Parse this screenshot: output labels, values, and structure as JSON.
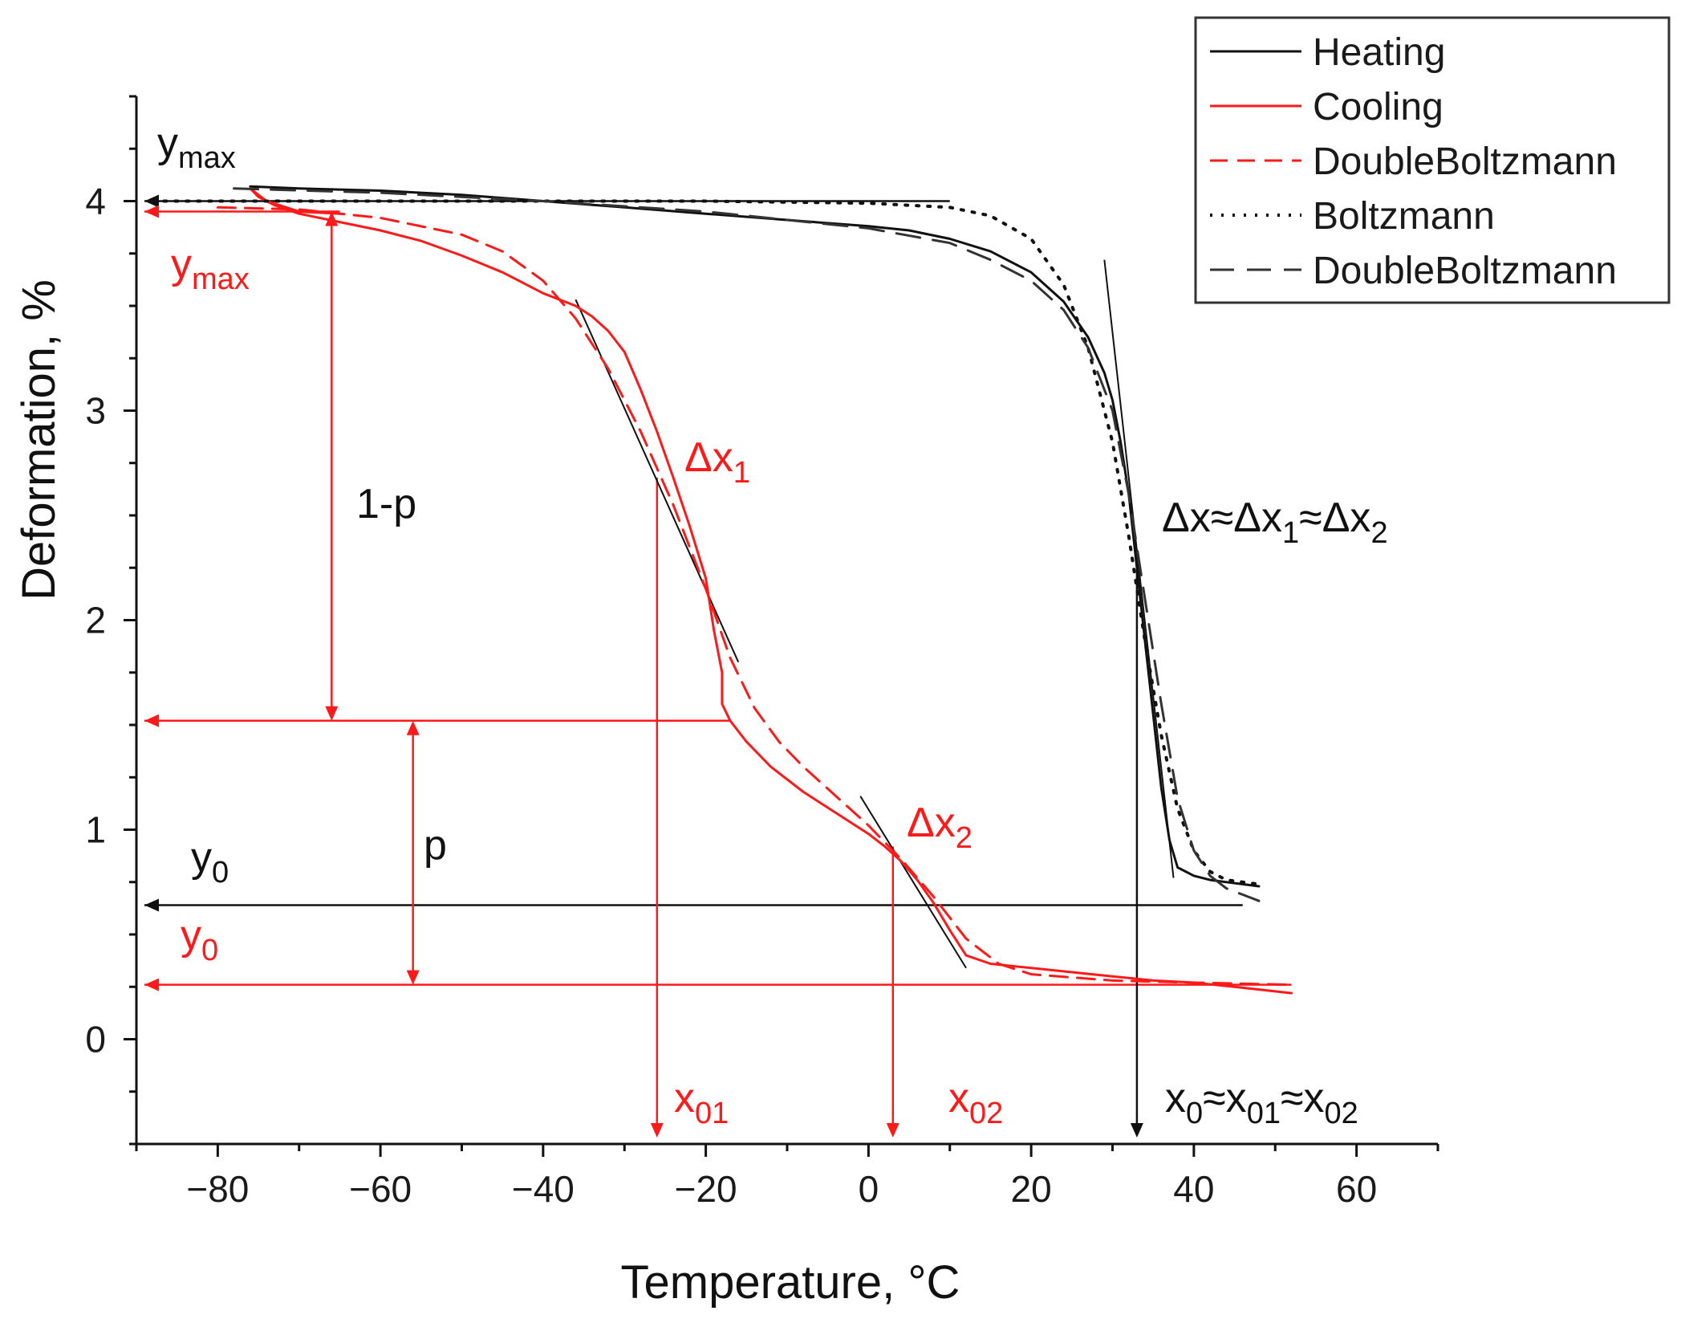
{
  "chart_data": {
    "type": "line",
    "xlabel": "Temperature, °C",
    "ylabel": "Deformation, %",
    "xlim": [
      -90,
      70
    ],
    "ylim": [
      -0.5,
      4.5
    ],
    "xticks": [
      -80,
      -60,
      -40,
      -20,
      0,
      20,
      40,
      60
    ],
    "xtick_labels": [
      "−80",
      "−60",
      "−40",
      "−20",
      "0",
      "20",
      "40",
      "60"
    ],
    "yticks": [
      0,
      1,
      2,
      3,
      4
    ],
    "ytick_labels": [
      "0",
      "1",
      "2",
      "3",
      "4"
    ],
    "legend_position": "top-right",
    "colors": {
      "black": "#111111",
      "red": "#ff1a1a"
    },
    "series": [
      {
        "name": "Heating",
        "color": "#111111",
        "style": "solid",
        "width": 3,
        "x": [
          -76,
          -70,
          -60,
          -50,
          -40,
          -30,
          -20,
          -10,
          0,
          5,
          10,
          15,
          20,
          24,
          27,
          29,
          30,
          31,
          32,
          33,
          34,
          35,
          36,
          37,
          38,
          40,
          42,
          44,
          46,
          48
        ],
        "y": [
          4.07,
          4.06,
          4.05,
          4.03,
          4.0,
          3.97,
          3.94,
          3.91,
          3.88,
          3.86,
          3.82,
          3.76,
          3.66,
          3.52,
          3.35,
          3.18,
          3.05,
          2.85,
          2.6,
          2.25,
          1.9,
          1.55,
          1.2,
          0.95,
          0.82,
          0.78,
          0.76,
          0.75,
          0.74,
          0.73
        ]
      },
      {
        "name": "Cooling",
        "color": "#ff1a1a",
        "style": "solid",
        "width": 3,
        "x": [
          52,
          45,
          40,
          35,
          30,
          25,
          20,
          15,
          12,
          10,
          8,
          6,
          4,
          2,
          0,
          -4,
          -8,
          -12,
          -15,
          -17,
          -18,
          -18,
          -19,
          -20,
          -22,
          -24,
          -26,
          -28,
          -30,
          -32,
          -34,
          -36,
          -40,
          -45,
          -50,
          -55,
          -60,
          -65,
          -70,
          -73,
          -75,
          -76,
          -74,
          -70,
          -65
        ],
        "y": [
          0.22,
          0.25,
          0.27,
          0.28,
          0.3,
          0.32,
          0.34,
          0.36,
          0.4,
          0.52,
          0.65,
          0.76,
          0.85,
          0.92,
          0.98,
          1.08,
          1.18,
          1.3,
          1.42,
          1.52,
          1.6,
          1.75,
          1.95,
          2.2,
          2.45,
          2.68,
          2.9,
          3.1,
          3.28,
          3.38,
          3.45,
          3.5,
          3.56,
          3.66,
          3.74,
          3.81,
          3.86,
          3.9,
          3.94,
          3.98,
          4.02,
          4.06,
          4.0,
          3.95,
          3.94
        ]
      },
      {
        "name": "DoubleBoltzmann",
        "color": "#ff1a1a",
        "style": "dashed",
        "width": 3,
        "x": [
          -80,
          -70,
          -60,
          -50,
          -45,
          -40,
          -36,
          -32,
          -28,
          -24,
          -20,
          -17,
          -14,
          -11,
          -8,
          -4,
          0,
          4,
          8,
          12,
          16,
          20,
          30,
          40,
          52
        ],
        "y": [
          3.97,
          3.96,
          3.92,
          3.84,
          3.76,
          3.62,
          3.44,
          3.2,
          2.9,
          2.55,
          2.15,
          1.82,
          1.58,
          1.42,
          1.3,
          1.16,
          1.02,
          0.86,
          0.68,
          0.48,
          0.36,
          0.31,
          0.28,
          0.27,
          0.26
        ]
      },
      {
        "name": "Boltzmann",
        "color": "#111111",
        "style": "dotted",
        "width": 4,
        "x": [
          -88,
          -60,
          -40,
          -20,
          0,
          10,
          15,
          20,
          24,
          27,
          30,
          32,
          34,
          36,
          38,
          40,
          42,
          44,
          48
        ],
        "y": [
          4.0,
          4.0,
          4.0,
          4.0,
          3.99,
          3.97,
          3.93,
          3.82,
          3.6,
          3.3,
          2.85,
          2.4,
          1.9,
          1.45,
          1.1,
          0.9,
          0.8,
          0.76,
          0.74
        ]
      },
      {
        "name": "DoubleBoltzmann",
        "color": "#333333",
        "style": "longdash",
        "width": 3,
        "x": [
          -78,
          -60,
          -40,
          -20,
          0,
          10,
          15,
          20,
          24,
          27,
          30,
          32,
          34,
          36,
          38,
          40,
          42,
          44,
          46,
          48
        ],
        "y": [
          4.06,
          4.04,
          4.0,
          3.95,
          3.87,
          3.8,
          3.72,
          3.62,
          3.48,
          3.3,
          3.0,
          2.6,
          2.1,
          1.6,
          1.15,
          0.9,
          0.78,
          0.72,
          0.69,
          0.66
        ]
      }
    ],
    "annotations": {
      "ymax_black": 4.0,
      "ymax_red": 3.95,
      "y0_black": 0.64,
      "y0_red": 0.26,
      "mid_level": 1.52,
      "x01": -26,
      "x02": 3,
      "x0": 33,
      "tangent1": {
        "from": [
          -36,
          3.53
        ],
        "to": [
          -16,
          1.8
        ]
      },
      "tangent2": {
        "from": [
          -1,
          1.16
        ],
        "to": [
          12,
          0.34
        ]
      },
      "tangent3": {
        "from": [
          29,
          3.72
        ],
        "to": [
          37.5,
          0.77
        ]
      },
      "arrow_1p_x": -66,
      "arrow_p_x": -56
    }
  },
  "labels": {
    "y_max": "y",
    "max_sub": "max",
    "y0": "y",
    "zero_sub": "0",
    "one_minus_p": "1-p",
    "p": "p",
    "dx1": "Δx",
    "dx1_sub": "1",
    "dx2": "Δx",
    "dx2_sub": "2",
    "dx_eq_a": "Δx≈Δx",
    "dx_eq_sub1": "1",
    "dx_eq_b": "≈Δx",
    "dx_eq_sub2": "2",
    "x01": "x",
    "x01_sub": "01",
    "x02": "x",
    "x02_sub": "02",
    "x0_eq_a": "x",
    "x0_eq_sub0": "0",
    "x0_eq_b": "≈x",
    "x0_eq_sub01": "01",
    "x0_eq_c": "≈x",
    "x0_eq_sub02": "02"
  }
}
